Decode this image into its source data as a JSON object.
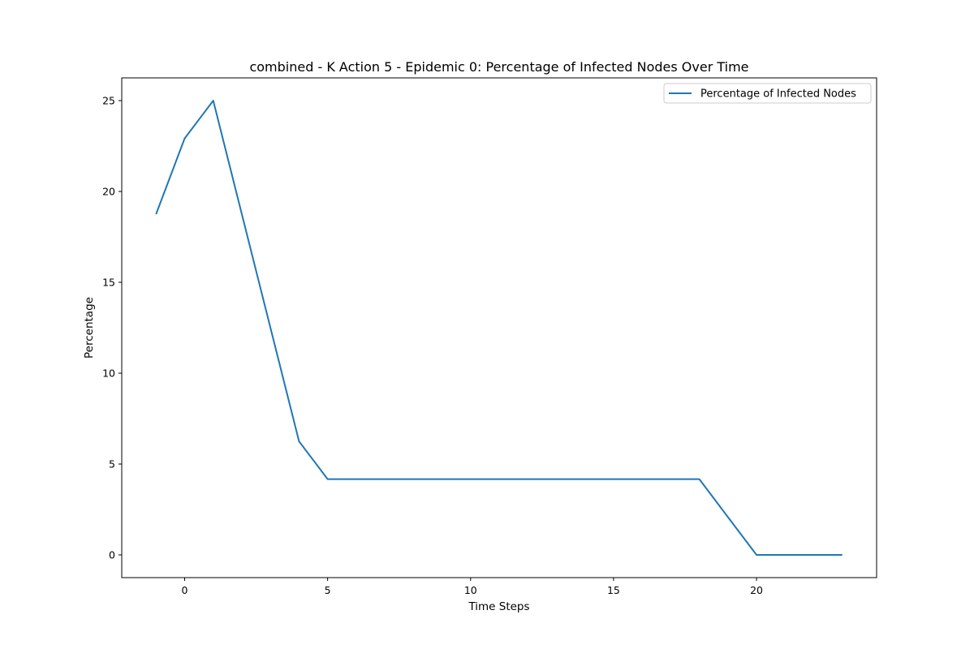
{
  "chart_data": {
    "type": "line",
    "title": "combined - K Action 5 - Epidemic 0: Percentage of Infected Nodes Over Time",
    "xlabel": "Time Steps",
    "ylabel": "Percentage",
    "xlim": [
      -2.2,
      24.2
    ],
    "ylim": [
      -1.25,
      26.25
    ],
    "xticks": [
      0,
      5,
      10,
      15,
      20
    ],
    "yticks": [
      0,
      5,
      10,
      15,
      20,
      25
    ],
    "grid": false,
    "legend": {
      "position": "top-right",
      "entries": [
        "Percentage of Infected Nodes"
      ]
    },
    "series": [
      {
        "name": "Percentage of Infected Nodes",
        "color": "#1f77b4",
        "x": [
          -1,
          0,
          1,
          2,
          3,
          4,
          5,
          6,
          7,
          8,
          9,
          10,
          11,
          12,
          13,
          14,
          15,
          16,
          17,
          18,
          19,
          20,
          21,
          22,
          23
        ],
        "y": [
          18.75,
          22.92,
          25.0,
          18.75,
          12.5,
          6.25,
          4.17,
          4.17,
          4.17,
          4.17,
          4.17,
          4.17,
          4.17,
          4.17,
          4.17,
          4.17,
          4.17,
          4.17,
          4.17,
          4.17,
          2.08,
          0.0,
          0.0,
          0.0,
          0.0
        ]
      }
    ]
  }
}
